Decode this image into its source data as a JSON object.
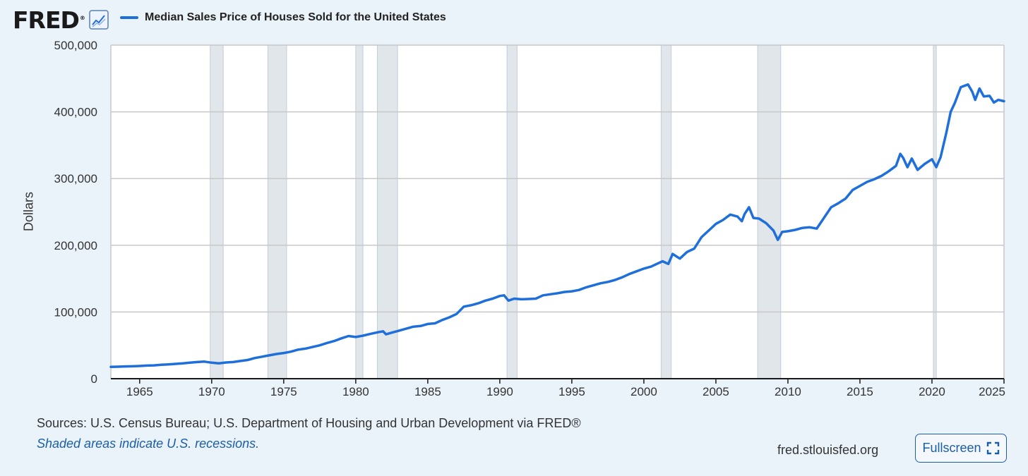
{
  "header": {
    "logo_text": "FRED",
    "logo_reg": "®",
    "legend_label": "Median Sales Price of Houses Sold for the United States",
    "line_color": "#1f6fdb"
  },
  "footer": {
    "sources": "Sources: U.S. Census Bureau; U.S. Department of Housing and Urban Development via FRED®",
    "recession_note": "Shaded areas indicate U.S. recessions.",
    "site": "fred.stlouisfed.org",
    "fullscreen_label": "Fullscreen",
    "fullscreen_icon": "expand-icon"
  },
  "chart_data": {
    "type": "line",
    "title": "",
    "xlabel": "",
    "ylabel": "Dollars",
    "xlim": [
      1963.0,
      2025.0
    ],
    "ylim": [
      0,
      500000
    ],
    "grid": true,
    "legend_position": "top-left",
    "x_ticks": [
      1965,
      1970,
      1975,
      1980,
      1985,
      1990,
      1995,
      2000,
      2005,
      2010,
      2015,
      2020,
      2025
    ],
    "y_ticks": [
      {
        "value": 0,
        "label": "0"
      },
      {
        "value": 100000,
        "label": "100,000"
      },
      {
        "value": 200000,
        "label": "200,000"
      },
      {
        "value": 300000,
        "label": "300,000"
      },
      {
        "value": 400000,
        "label": "400,000"
      },
      {
        "value": 500000,
        "label": "500,000"
      }
    ],
    "recessions": [
      [
        1969.9,
        1970.8
      ],
      [
        1973.9,
        1975.2
      ],
      [
        1980.0,
        1980.5
      ],
      [
        1981.5,
        1982.9
      ],
      [
        1990.5,
        1991.2
      ],
      [
        2001.2,
        2001.9
      ],
      [
        2007.9,
        2009.5
      ],
      [
        2020.1,
        2020.3
      ]
    ],
    "recession_color": "#e1e6eb",
    "series": [
      {
        "name": "Median Sales Price of Houses Sold for the United States",
        "color": "#1f6fdb",
        "points": [
          [
            1963.0,
            17800
          ],
          [
            1963.5,
            18000
          ],
          [
            1964.0,
            18400
          ],
          [
            1964.5,
            18600
          ],
          [
            1965.0,
            19000
          ],
          [
            1965.5,
            19700
          ],
          [
            1966.0,
            20000
          ],
          [
            1966.5,
            20900
          ],
          [
            1967.0,
            21500
          ],
          [
            1967.5,
            22200
          ],
          [
            1968.0,
            23000
          ],
          [
            1968.5,
            24000
          ],
          [
            1969.0,
            25000
          ],
          [
            1969.5,
            25600
          ],
          [
            1970.0,
            24000
          ],
          [
            1970.5,
            23000
          ],
          [
            1971.0,
            24300
          ],
          [
            1971.5,
            25000
          ],
          [
            1972.0,
            26500
          ],
          [
            1972.5,
            28000
          ],
          [
            1973.0,
            31000
          ],
          [
            1973.5,
            33000
          ],
          [
            1974.0,
            35000
          ],
          [
            1974.5,
            37000
          ],
          [
            1975.0,
            38500
          ],
          [
            1975.5,
            40500
          ],
          [
            1976.0,
            43500
          ],
          [
            1976.5,
            45000
          ],
          [
            1977.0,
            47500
          ],
          [
            1977.5,
            50000
          ],
          [
            1978.0,
            53500
          ],
          [
            1978.5,
            56500
          ],
          [
            1979.0,
            60500
          ],
          [
            1979.5,
            64000
          ],
          [
            1980.0,
            62500
          ],
          [
            1980.5,
            64500
          ],
          [
            1981.0,
            67000
          ],
          [
            1981.5,
            69500
          ],
          [
            1981.9,
            71000
          ],
          [
            1982.1,
            66500
          ],
          [
            1982.5,
            69000
          ],
          [
            1983.0,
            72000
          ],
          [
            1983.5,
            75000
          ],
          [
            1984.0,
            78000
          ],
          [
            1984.5,
            79000
          ],
          [
            1985.0,
            82000
          ],
          [
            1985.5,
            83000
          ],
          [
            1986.0,
            88000
          ],
          [
            1986.5,
            92000
          ],
          [
            1987.0,
            97000
          ],
          [
            1987.5,
            108000
          ],
          [
            1988.0,
            110000
          ],
          [
            1988.5,
            113000
          ],
          [
            1989.0,
            117000
          ],
          [
            1989.5,
            120000
          ],
          [
            1990.0,
            124000
          ],
          [
            1990.3,
            125000
          ],
          [
            1990.6,
            117000
          ],
          [
            1991.0,
            120000
          ],
          [
            1991.5,
            119000
          ],
          [
            1992.0,
            119500
          ],
          [
            1992.5,
            120000
          ],
          [
            1993.0,
            125000
          ],
          [
            1993.5,
            126500
          ],
          [
            1994.0,
            128000
          ],
          [
            1994.5,
            130000
          ],
          [
            1995.0,
            131000
          ],
          [
            1995.5,
            133000
          ],
          [
            1996.0,
            137000
          ],
          [
            1996.5,
            140000
          ],
          [
            1997.0,
            143000
          ],
          [
            1997.5,
            145000
          ],
          [
            1998.0,
            148000
          ],
          [
            1998.5,
            152000
          ],
          [
            1999.0,
            157000
          ],
          [
            1999.5,
            161000
          ],
          [
            2000.0,
            165000
          ],
          [
            2000.5,
            168000
          ],
          [
            2001.0,
            173000
          ],
          [
            2001.3,
            176000
          ],
          [
            2001.7,
            172000
          ],
          [
            2002.0,
            187000
          ],
          [
            2002.5,
            180000
          ],
          [
            2003.0,
            190000
          ],
          [
            2003.5,
            195000
          ],
          [
            2004.0,
            212000
          ],
          [
            2004.5,
            222000
          ],
          [
            2005.0,
            232000
          ],
          [
            2005.5,
            238000
          ],
          [
            2006.0,
            246000
          ],
          [
            2006.5,
            243000
          ],
          [
            2006.8,
            236000
          ],
          [
            2007.0,
            247000
          ],
          [
            2007.3,
            257000
          ],
          [
            2007.6,
            241000
          ],
          [
            2008.0,
            240000
          ],
          [
            2008.5,
            233000
          ],
          [
            2009.0,
            222000
          ],
          [
            2009.3,
            208000
          ],
          [
            2009.6,
            220000
          ],
          [
            2010.0,
            221000
          ],
          [
            2010.5,
            223000
          ],
          [
            2011.0,
            226000
          ],
          [
            2011.5,
            227000
          ],
          [
            2012.0,
            225000
          ],
          [
            2012.5,
            241000
          ],
          [
            2013.0,
            257000
          ],
          [
            2013.5,
            263000
          ],
          [
            2014.0,
            270000
          ],
          [
            2014.5,
            283000
          ],
          [
            2015.0,
            289000
          ],
          [
            2015.5,
            295000
          ],
          [
            2016.0,
            299000
          ],
          [
            2016.5,
            304000
          ],
          [
            2017.0,
            311000
          ],
          [
            2017.5,
            319000
          ],
          [
            2017.8,
            337000
          ],
          [
            2018.0,
            331000
          ],
          [
            2018.3,
            317000
          ],
          [
            2018.6,
            330000
          ],
          [
            2019.0,
            313000
          ],
          [
            2019.5,
            322000
          ],
          [
            2020.0,
            329000
          ],
          [
            2020.3,
            317000
          ],
          [
            2020.6,
            332000
          ],
          [
            2021.0,
            369000
          ],
          [
            2021.3,
            400000
          ],
          [
            2021.6,
            414000
          ],
          [
            2022.0,
            437000
          ],
          [
            2022.5,
            441000
          ],
          [
            2022.8,
            430000
          ],
          [
            2023.0,
            418000
          ],
          [
            2023.3,
            435000
          ],
          [
            2023.6,
            423000
          ],
          [
            2024.0,
            424000
          ],
          [
            2024.3,
            414000
          ],
          [
            2024.6,
            418000
          ],
          [
            2025.0,
            416000
          ]
        ]
      }
    ]
  }
}
